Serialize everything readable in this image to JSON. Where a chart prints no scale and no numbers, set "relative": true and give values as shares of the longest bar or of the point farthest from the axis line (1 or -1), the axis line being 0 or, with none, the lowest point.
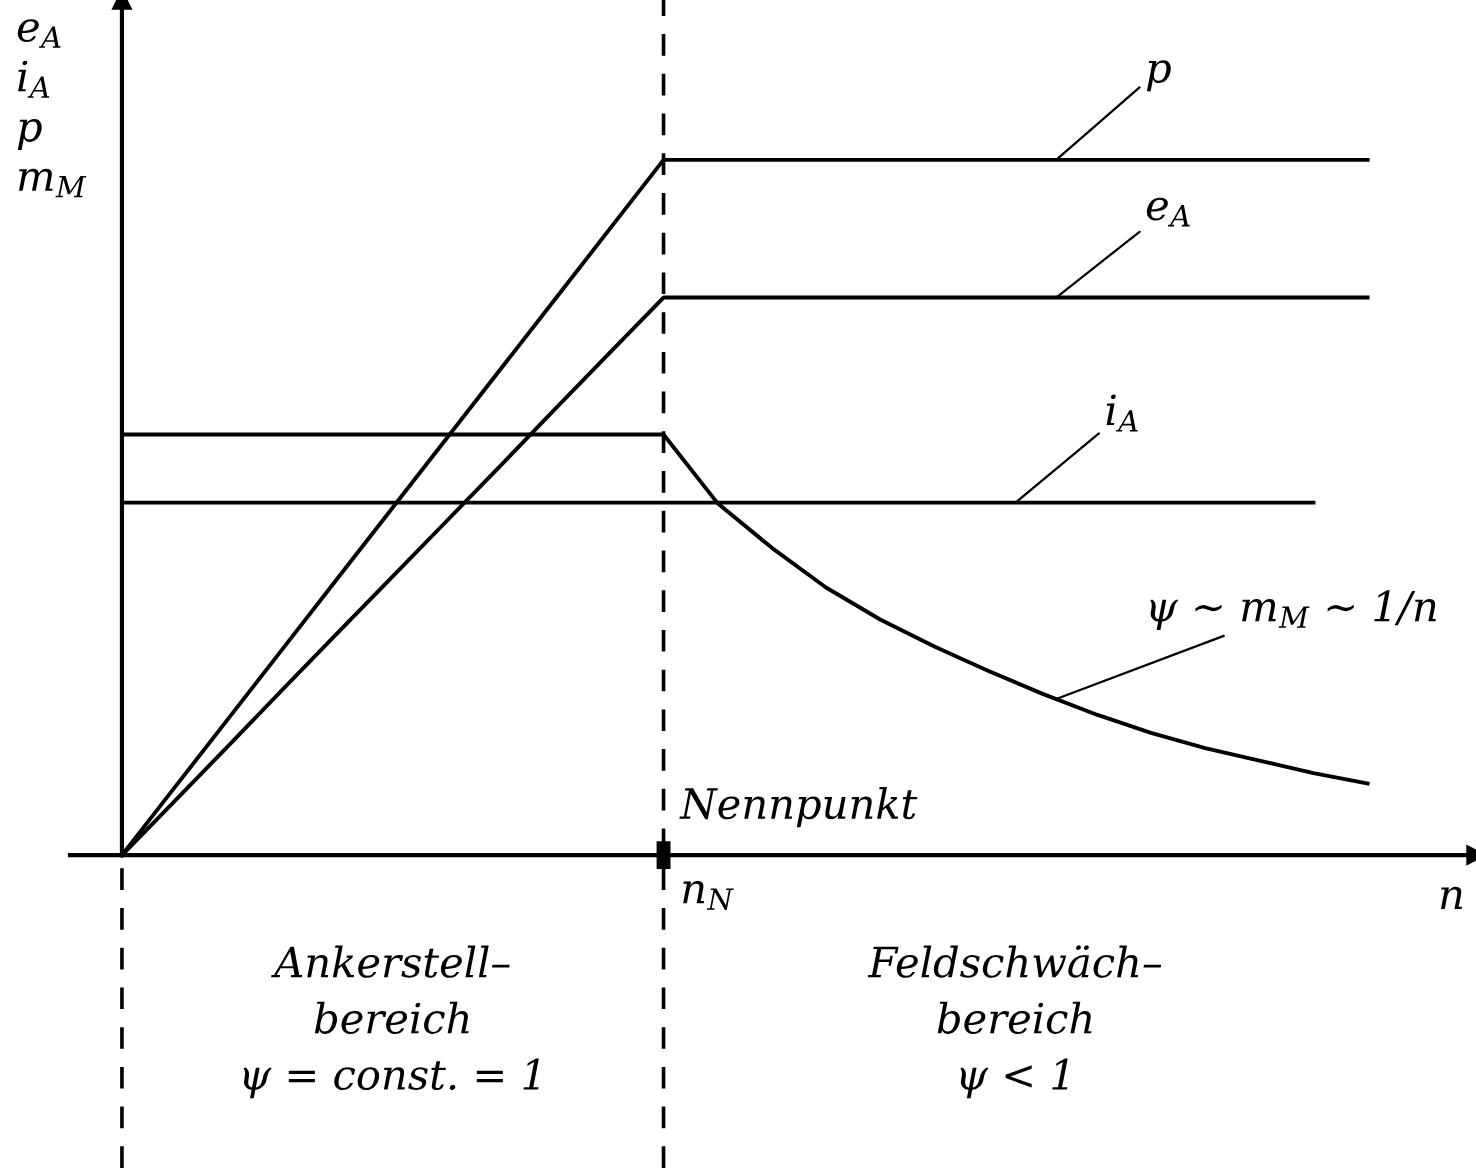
{
  "chart_data": {
    "type": "line",
    "relative": true,
    "xlabel": "n",
    "ylabel": "e$_{A}$\ni$_{A}$\np\nm$_{M}$",
    "categories": [
      null,
      null,
      null,
      null,
      null,
      null,
      null,
      null,
      null,
      null,
      null,
      null,
      null,
      null,
      null,
      null,
      null,
      null,
      null,
      null,
      null,
      null,
      null,
      null
    ],
    "legend": false,
    "marker": "none",
    "line_style": "solid",
    "series": [
      {
        "name": "p",
        "color": "#000000",
        "values": [
          0,
          0.1,
          0.2,
          0.3,
          0.4,
          0.5,
          0.6,
          0.7,
          0.8,
          0.9,
          1,
          1,
          1,
          1,
          1,
          1,
          1,
          1,
          1,
          1,
          1,
          1,
          1,
          1
        ]
      },
      {
        "name": "e$_{A}$",
        "color": "#000000",
        "values": [
          0,
          0.08,
          0.16,
          0.241,
          0.321,
          0.401,
          0.481,
          0.561,
          0.642,
          0.722,
          0.802,
          0.802,
          0.802,
          0.802,
          0.802,
          0.802,
          0.802,
          0.802,
          0.802,
          0.802,
          0.802,
          0.802,
          0.802,
          0.802
        ]
      },
      {
        "name": "i$_{A}$",
        "color": "#000000",
        "values": [
          0.507,
          0.507,
          0.507,
          0.507,
          0.507,
          0.507,
          0.507,
          0.507,
          0.507,
          0.507,
          0.507,
          0.507,
          0.507,
          0.507,
          0.507,
          0.507,
          0.507,
          0.507,
          0.507,
          0.507,
          0.507,
          0.507,
          0.507,
          null
        ]
      },
      {
        "name": "ψ ∼ m$_{M}$ ∼ 1/n",
        "color": "#000000",
        "values": [
          0.605,
          0.605,
          0.605,
          0.605,
          0.605,
          0.605,
          0.605,
          0.605,
          0.605,
          0.605,
          0.605,
          0.506,
          0.442,
          0.385,
          0.339,
          0.3,
          0.265,
          0.232,
          0.202,
          0.176,
          0.154,
          0.136,
          0.118,
          0.103
        ]
      }
    ],
    "annotations": [
      "Nennpunkt",
      "n$_{N}$",
      "Ankerstell–\nbereich\nψ = const. = 1",
      "Feldschwäch–\nbereich\nψ < 1"
    ]
  }
}
